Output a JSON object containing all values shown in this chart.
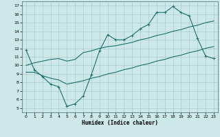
{
  "xlabel": "Humidex (Indice chaleur)",
  "x_ticks": [
    0,
    1,
    2,
    3,
    4,
    5,
    6,
    7,
    8,
    9,
    10,
    11,
    12,
    13,
    14,
    15,
    16,
    17,
    18,
    19,
    20,
    21,
    22,
    23
  ],
  "y_ticks": [
    5,
    6,
    7,
    8,
    9,
    10,
    11,
    12,
    13,
    14,
    15,
    16,
    17
  ],
  "xlim": [
    -0.5,
    23.5
  ],
  "ylim": [
    4.5,
    17.5
  ],
  "bg_color": "#cce8e8",
  "grid_color": "#aacccc",
  "line_color": "#1a6e6e",
  "line1_y": [
    11.8,
    9.5,
    8.7,
    7.8,
    7.5,
    5.2,
    5.5,
    6.4,
    8.9,
    11.7,
    13.6,
    13.0,
    13.0,
    13.5,
    14.3,
    14.8,
    16.2,
    16.2,
    16.9,
    16.2,
    15.8,
    13.2,
    11.1,
    10.8
  ],
  "line2_y": [
    10.0,
    10.3,
    10.5,
    10.7,
    10.8,
    10.5,
    10.7,
    11.5,
    11.7,
    12.0,
    12.2,
    12.3,
    12.5,
    12.7,
    13.0,
    13.2,
    13.5,
    13.7,
    14.0,
    14.2,
    14.5,
    14.7,
    15.0,
    15.2
  ],
  "line3_y": [
    9.2,
    9.2,
    8.8,
    8.5,
    8.3,
    7.8,
    8.0,
    8.2,
    8.5,
    8.7,
    9.0,
    9.2,
    9.5,
    9.7,
    10.0,
    10.2,
    10.5,
    10.7,
    11.0,
    11.2,
    11.5,
    11.7,
    12.0,
    12.2
  ]
}
